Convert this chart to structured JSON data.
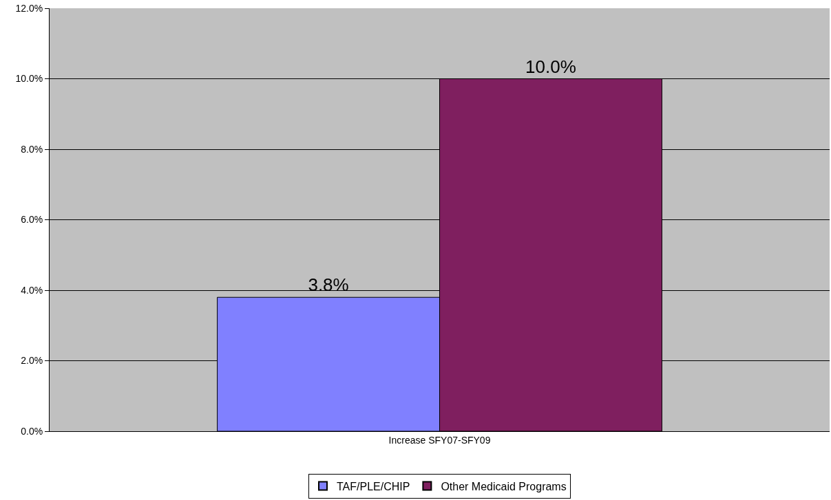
{
  "chart_data": {
    "type": "bar",
    "categories": [
      "Increase SFY07-SFY09"
    ],
    "series": [
      {
        "name": "TAF/PLE/CHIP",
        "color": "#8080ff",
        "values": [
          3.8
        ],
        "value_labels": [
          "3.8%"
        ]
      },
      {
        "name": "Other Medicaid Programs",
        "color": "#7f1f5f",
        "values": [
          10.0
        ],
        "value_labels": [
          "10.0%"
        ]
      }
    ],
    "ylim": [
      0,
      12
    ],
    "yticks": [
      {
        "value": 0,
        "label": "0.0%"
      },
      {
        "value": 2,
        "label": "2.0%"
      },
      {
        "value": 4,
        "label": "4.0%"
      },
      {
        "value": 6,
        "label": "6.0%"
      },
      {
        "value": 8,
        "label": "8.0%"
      },
      {
        "value": 10,
        "label": "10.0%"
      },
      {
        "value": 12,
        "label": "12.0%"
      }
    ],
    "grid": "y",
    "legend": "bottom"
  }
}
